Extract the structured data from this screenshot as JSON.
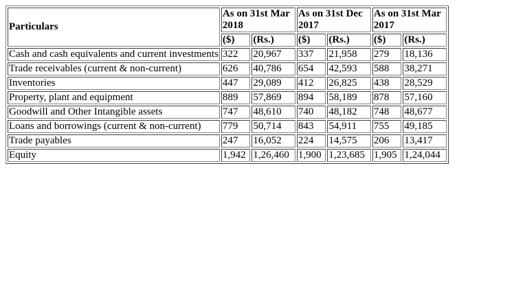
{
  "table": {
    "particulars_header": "Particulars",
    "periods": [
      {
        "label": "As on 31st Mar 2018",
        "units": [
          "($)",
          "(Rs.)"
        ]
      },
      {
        "label": "As on 31st Dec 2017",
        "units": [
          "($)",
          "(Rs.)"
        ]
      },
      {
        "label": "As on 31st Mar 2017",
        "units": [
          "($)",
          "(Rs.)"
        ]
      }
    ],
    "rows": [
      {
        "label": "Cash and cash equivalents and current investments",
        "values": [
          "322",
          "20,967",
          "337",
          "21,958",
          "279",
          "18,136"
        ]
      },
      {
        "label": "Trade receivables (current & non-current)",
        "values": [
          "626",
          "40,786",
          "654",
          "42,593",
          "588",
          "38,271"
        ]
      },
      {
        "label": "Inventories",
        "values": [
          "447",
          "29,089",
          "412",
          "26,825",
          "438",
          "28,529"
        ]
      },
      {
        "label": "Property, plant and equipment",
        "values": [
          "889",
          "57,869",
          "894",
          "58,189",
          "878",
          "57,160"
        ]
      },
      {
        "label": "Goodwill and Other Intangible assets",
        "values": [
          "747",
          "48,610",
          "740",
          "48,182",
          "748",
          "48,677"
        ]
      },
      {
        "label": "Loans and borrowings (current & non-current)",
        "values": [
          "779",
          "50,714",
          "843",
          "54,911",
          "755",
          "49,185"
        ]
      },
      {
        "label": "Trade payables",
        "values": [
          "247",
          "16,052",
          "224",
          "14,575",
          "206",
          "13,417"
        ]
      },
      {
        "label": "Equity",
        "values": [
          "1,942",
          "1,26,460",
          "1,900",
          "1,23,685",
          "1,905",
          "1,24,044"
        ]
      }
    ]
  }
}
